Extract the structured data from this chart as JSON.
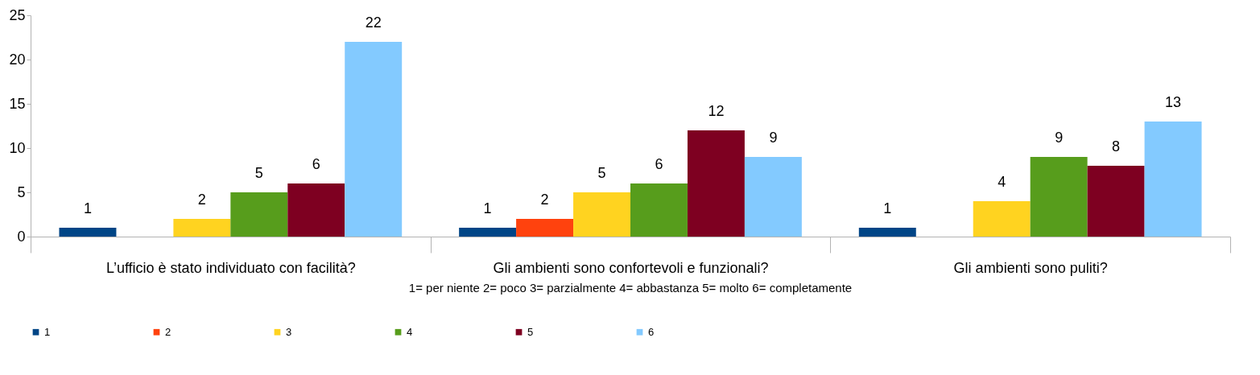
{
  "chart_data": {
    "type": "bar",
    "categories": [
      "L’ufficio è stato individuato con facilità?",
      "Gli ambienti sono confortevoli e funzionali?",
      "Gli ambienti sono puliti?"
    ],
    "series": [
      {
        "name": "1",
        "color": "#004586",
        "values": [
          1,
          1,
          1
        ]
      },
      {
        "name": "2",
        "color": "#ff420e",
        "values": [
          null,
          2,
          null
        ]
      },
      {
        "name": "3",
        "color": "#ffd320",
        "values": [
          2,
          5,
          4
        ]
      },
      {
        "name": "4",
        "color": "#579d1c",
        "values": [
          5,
          6,
          9
        ]
      },
      {
        "name": "5",
        "color": "#7e0021",
        "values": [
          6,
          12,
          8
        ]
      },
      {
        "name": "6",
        "color": "#83caff",
        "values": [
          22,
          9,
          13
        ]
      }
    ],
    "ylim": [
      0,
      25
    ],
    "yticks": [
      0,
      5,
      10,
      15,
      20,
      25
    ],
    "grid": false,
    "legend": "bottom",
    "data_labels": true,
    "annotations": [
      "1= per niente  2= poco  3= parzialmente  4= abbastanza  5= molto  6= completamente"
    ]
  }
}
